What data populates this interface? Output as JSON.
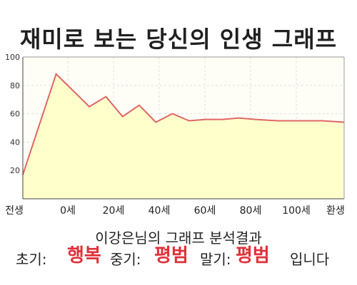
{
  "title": "재미로 보는 당신의 인생 그래프",
  "chart_data": {
    "type": "area",
    "title": "재미로 보는 당신의 인생 그래프",
    "x_tick_labels": [
      "전생",
      "0세",
      "20세",
      "40세",
      "60세",
      "80세",
      "100세",
      "환생"
    ],
    "x": [
      -15,
      0,
      15,
      22.5,
      30,
      37.5,
      45,
      52.5,
      60,
      67.5,
      75,
      82.5,
      90,
      100,
      112,
      120,
      130
    ],
    "values": [
      17,
      88,
      65,
      72,
      58,
      66,
      54,
      60,
      55,
      56,
      56,
      57,
      56,
      55,
      55,
      55,
      54
    ],
    "ylim": [
      0,
      100
    ],
    "y_ticks": [
      20,
      40,
      60,
      80,
      100
    ],
    "grid": true,
    "line_color": "#e06666",
    "fill_color": "#ffffcc"
  },
  "result": {
    "subtitle": "이강은님의 그래프 분석결과",
    "early_label": "초기:",
    "early_value": "행복",
    "mid_label": "중기:",
    "mid_value": "평범",
    "late_label": "말기:",
    "late_value": "평범",
    "ending": "입니다"
  },
  "colors": {
    "highlight": "#e0303a",
    "axis": "#444444",
    "grid": "#dddddd"
  }
}
